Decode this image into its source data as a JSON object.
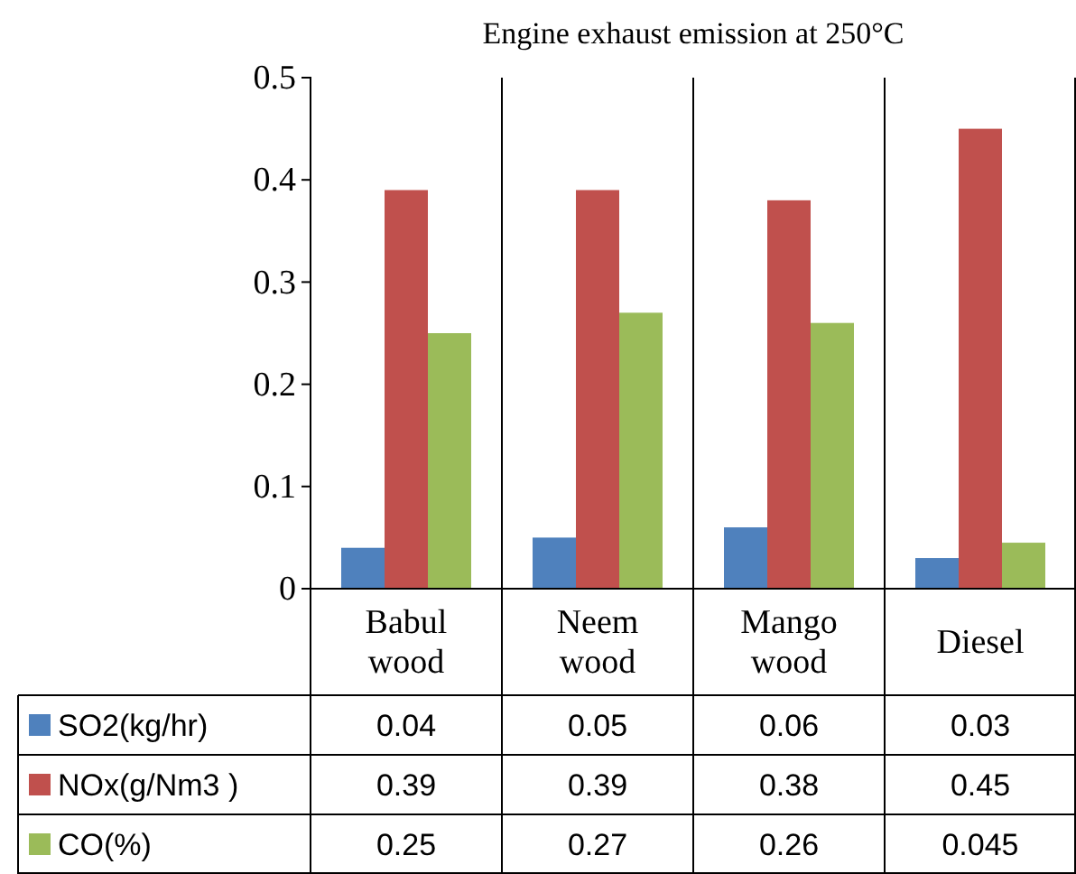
{
  "chart_data": {
    "type": "bar",
    "title": "Engine exhaust emission at 250°C",
    "categories": [
      "Babul wood",
      "Neem wood",
      "Mango wood",
      "Diesel"
    ],
    "series": [
      {
        "name": "SO2(kg/hr)",
        "color": "#4f81bd",
        "values": [
          0.04,
          0.05,
          0.06,
          0.03
        ]
      },
      {
        "name": "NOx(g/Nm3  )",
        "color": "#c0504d",
        "values": [
          0.39,
          0.39,
          0.38,
          0.45
        ]
      },
      {
        "name": "CO(%)",
        "color": "#9bbb59",
        "values": [
          0.25,
          0.27,
          0.26,
          0.045
        ]
      }
    ],
    "ylim": [
      0,
      0.5
    ],
    "yticks": [
      0,
      0.1,
      0.2,
      0.3,
      0.4,
      0.5
    ],
    "grid": "x",
    "legend": "bottom",
    "data_labels": true
  }
}
